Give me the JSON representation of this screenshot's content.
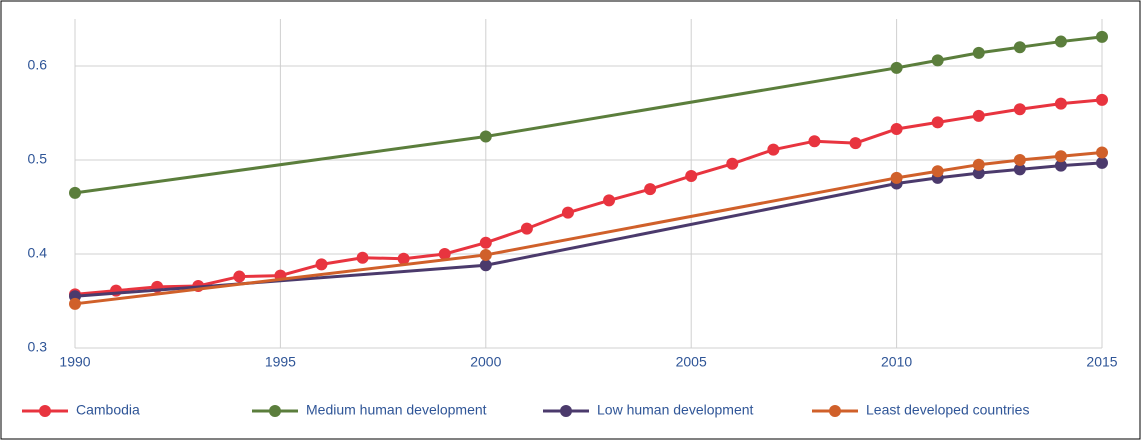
{
  "chart_data": {
    "type": "line",
    "xlim": [
      1990,
      2015
    ],
    "xticks": [
      1990,
      1995,
      2000,
      2005,
      2010,
      2015
    ],
    "ylim": [
      0.3,
      0.65
    ],
    "yticks": [
      0.3,
      0.4,
      0.5,
      0.6
    ],
    "grid": true,
    "legend": "bottom",
    "series": [
      {
        "name": "Cambodia",
        "color": "#e8343f",
        "x": [
          1990,
          1991,
          1992,
          1993,
          1994,
          1995,
          1996,
          1997,
          1998,
          1999,
          2000,
          2001,
          2002,
          2003,
          2004,
          2005,
          2006,
          2007,
          2008,
          2009,
          2010,
          2011,
          2012,
          2013,
          2014,
          2015
        ],
        "values": [
          0.357,
          0.361,
          0.365,
          0.366,
          0.376,
          0.377,
          0.389,
          0.396,
          0.395,
          0.4,
          0.412,
          0.427,
          0.444,
          0.457,
          0.469,
          0.483,
          0.496,
          0.511,
          0.52,
          0.518,
          0.533,
          0.54,
          0.547,
          0.554,
          0.56,
          0.564
        ]
      },
      {
        "name": "Medium human development",
        "color": "#5b7e3c",
        "x": [
          1990,
          2000,
          2010,
          2011,
          2012,
          2013,
          2014,
          2015
        ],
        "values": [
          0.465,
          0.525,
          0.598,
          0.606,
          0.614,
          0.62,
          0.626,
          0.631
        ]
      },
      {
        "name": "Low human development",
        "color": "#4b3a6c",
        "x": [
          1990,
          2000,
          2010,
          2011,
          2012,
          2013,
          2014,
          2015
        ],
        "values": [
          0.355,
          0.388,
          0.475,
          0.481,
          0.486,
          0.49,
          0.494,
          0.497
        ]
      },
      {
        "name": "Least developed countries",
        "color": "#d0602a",
        "x": [
          1990,
          2000,
          2010,
          2011,
          2012,
          2013,
          2014,
          2015
        ],
        "values": [
          0.347,
          0.399,
          0.481,
          0.488,
          0.495,
          0.5,
          0.504,
          0.508
        ]
      }
    ]
  }
}
